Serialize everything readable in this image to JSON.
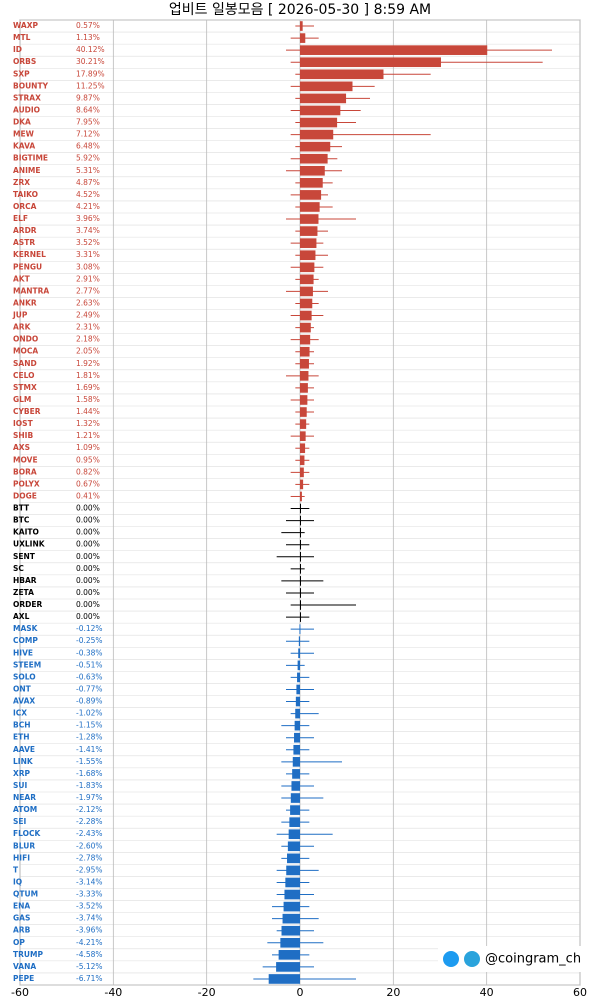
{
  "chart_data": {
    "type": "hbar-range",
    "title": "업비트 일봉모음 [ 2026-05-30 ]  8:59 AM",
    "annotation": "@coingram_ch",
    "categories": [
      "WAXP",
      "MTL",
      "ID",
      "ORBS",
      "SXP",
      "BOUNTY",
      "STRAX",
      "AUDIO",
      "DKA",
      "MEW",
      "KAVA",
      "BIGTIME",
      "ANIME",
      "ZRX",
      "TAIKO",
      "ORCA",
      "ELF",
      "ARDR",
      "ASTR",
      "KERNEL",
      "PENGU",
      "AKT",
      "MANTRA",
      "ANKR",
      "JUP",
      "ARK",
      "ONDO",
      "MOCA",
      "SAND",
      "CELO",
      "STMX",
      "GLM",
      "CYBER",
      "IOST",
      "SHIB",
      "AXS",
      "MOVE",
      "BORA",
      "POLYX",
      "DOGE",
      "BTT",
      "BTC",
      "KAITO",
      "UXLINK",
      "SENT",
      "SC",
      "HBAR",
      "ZETA",
      "ORDER",
      "AXL",
      "MASK",
      "COMP",
      "HIVE",
      "STEEM",
      "SOLO",
      "ONT",
      "AVAX",
      "ICX",
      "BCH",
      "ETH",
      "AAVE",
      "LINK",
      "XRP",
      "SUI",
      "NEAR",
      "ATOM",
      "SEI",
      "FLOCK",
      "BLUR",
      "HIFI",
      "T",
      "IQ",
      "QTUM",
      "ENA",
      "GAS",
      "ARB",
      "OP",
      "TRUMP",
      "VANA",
      "PEPE"
    ],
    "values": [
      0.57,
      1.13,
      40.12,
      30.21,
      17.89,
      11.25,
      9.87,
      8.64,
      7.95,
      7.12,
      6.48,
      5.92,
      5.31,
      4.87,
      4.52,
      4.21,
      3.96,
      3.74,
      3.52,
      3.31,
      3.08,
      2.91,
      2.77,
      2.63,
      2.49,
      2.31,
      2.18,
      2.05,
      1.92,
      1.81,
      1.69,
      1.58,
      1.44,
      1.32,
      1.21,
      1.09,
      0.95,
      0.82,
      0.67,
      0.41,
      0,
      0,
      0,
      0,
      0,
      0,
      0,
      0,
      0,
      0,
      -0.12,
      -0.25,
      -0.38,
      -0.51,
      -0.63,
      -0.77,
      -0.89,
      -1.02,
      -1.15,
      -1.28,
      -1.41,
      -1.55,
      -1.68,
      -1.83,
      -1.97,
      -2.12,
      -2.28,
      -2.43,
      -2.6,
      -2.78,
      -2.95,
      -3.14,
      -3.33,
      -3.52,
      -3.74,
      -3.96,
      -4.21,
      -4.58,
      -5.12,
      -6.71
    ],
    "value_labels": [
      "0.57%",
      "1.13%",
      "40.12%",
      "30.21%",
      "17.89%",
      "11.25%",
      "9.87%",
      "8.64%",
      "7.95%",
      "7.12%",
      "6.48%",
      "5.92%",
      "5.31%",
      "4.87%",
      "4.52%",
      "4.21%",
      "3.96%",
      "3.74%",
      "3.52%",
      "3.31%",
      "3.08%",
      "2.91%",
      "2.77%",
      "2.63%",
      "2.49%",
      "2.31%",
      "2.18%",
      "2.05%",
      "1.92%",
      "1.81%",
      "1.69%",
      "1.58%",
      "1.44%",
      "1.32%",
      "1.21%",
      "1.09%",
      "0.95%",
      "0.82%",
      "0.67%",
      "0.41%",
      "0.00%",
      "0.00%",
      "0.00%",
      "0.00%",
      "0.00%",
      "0.00%",
      "0.00%",
      "0.00%",
      "0.00%",
      "0.00%",
      "-0.12%",
      "-0.25%",
      "-0.38%",
      "-0.51%",
      "-0.63%",
      "-0.77%",
      "-0.89%",
      "-1.02%",
      "-1.15%",
      "-1.28%",
      "-1.41%",
      "-1.55%",
      "-1.68%",
      "-1.83%",
      "-1.97%",
      "-2.12%",
      "-2.28%",
      "-2.43%",
      "-2.60%",
      "-2.78%",
      "-2.95%",
      "-3.14%",
      "-3.33%",
      "-3.52%",
      "-3.74%",
      "-3.96%",
      "-4.21%",
      "-4.58%",
      "-5.12%",
      "-6.71%"
    ],
    "lows": [
      -1,
      -2,
      -3,
      -2,
      -1,
      -2,
      -1,
      -2,
      -1,
      -2,
      -1,
      -2,
      -3,
      -1,
      -2,
      -1,
      -3,
      -1,
      -2,
      -1,
      -2,
      -1,
      -3,
      -1,
      -2,
      -1,
      -2,
      -1,
      -1,
      -3,
      -1,
      -2,
      -1,
      -1,
      -2,
      -1,
      -1,
      -2,
      -1,
      -2,
      -2,
      -3,
      -4,
      -3,
      -5,
      -2,
      -4,
      -3,
      -2,
      -3,
      -2,
      -3,
      -2,
      -3,
      -2,
      -3,
      -3,
      -2,
      -4,
      -3,
      -3,
      -4,
      -3,
      -4,
      -4,
      -3,
      -4,
      -5,
      -4,
      -4,
      -5,
      -5,
      -5,
      -6,
      -6,
      -5,
      -7,
      -6,
      -8,
      -10
    ],
    "highs": [
      3,
      4,
      54,
      52,
      28,
      16,
      15,
      13,
      12,
      28,
      9,
      8,
      9,
      7,
      6,
      7,
      12,
      6,
      5,
      6,
      5,
      4,
      6,
      4,
      5,
      3,
      4,
      3,
      3,
      4,
      3,
      3,
      3,
      2,
      3,
      2,
      2,
      2,
      2,
      1,
      2,
      3,
      1,
      2,
      3,
      1,
      5,
      3,
      12,
      2,
      3,
      2,
      3,
      1,
      2,
      3,
      2,
      4,
      2,
      3,
      2,
      9,
      2,
      3,
      5,
      2,
      2,
      7,
      3,
      2,
      4,
      2,
      3,
      2,
      4,
      3,
      5,
      2,
      3,
      12
    ],
    "up_color": "#c8473a",
    "flat_color": "#000000",
    "down_color": "#1f6ec4",
    "xlim": [
      -60,
      60
    ],
    "xticks": [
      -60,
      -40,
      -20,
      0,
      20,
      40,
      60
    ],
    "grid": true
  }
}
